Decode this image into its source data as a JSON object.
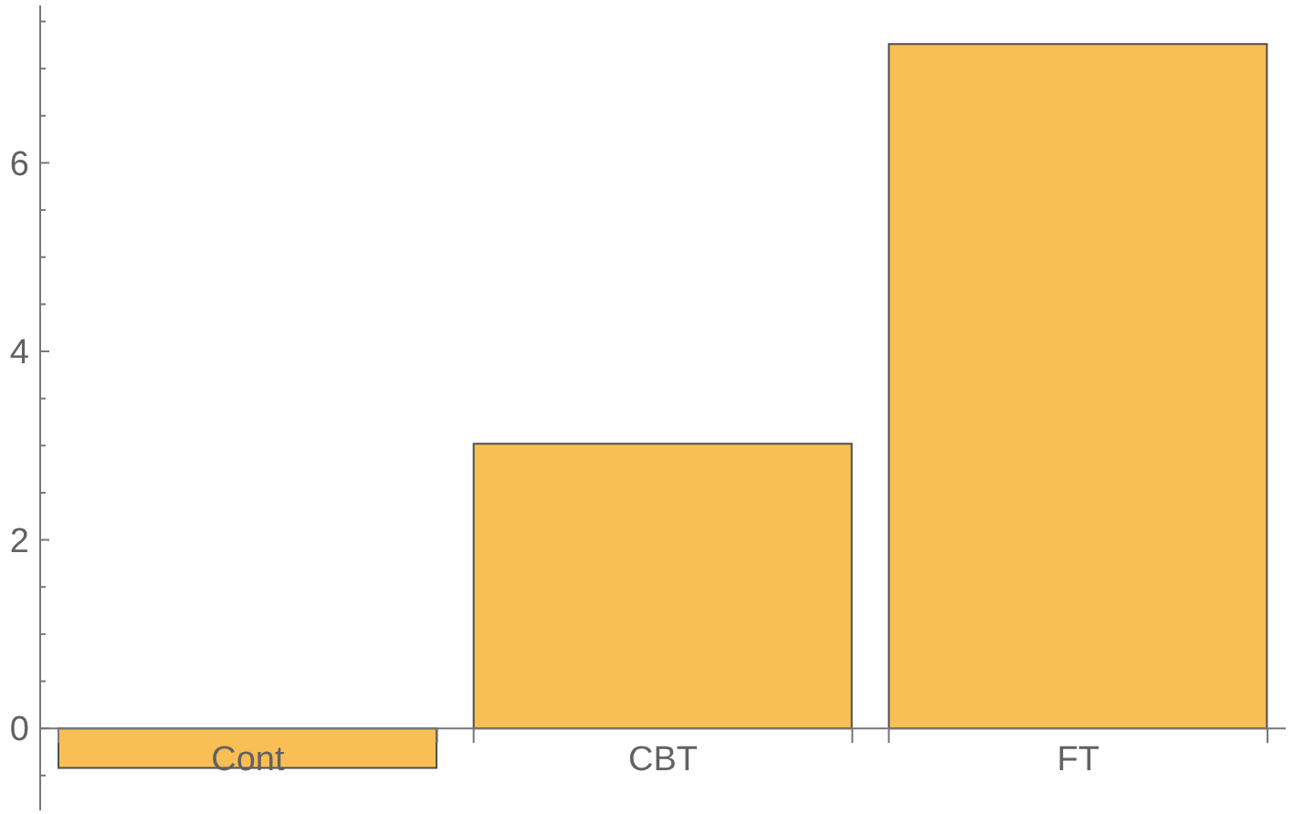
{
  "chart_data": {
    "type": "bar",
    "categories": [
      "Cont",
      "CBT",
      "FT"
    ],
    "values": [
      -0.42,
      3.02,
      7.26
    ],
    "color": "#f9be54",
    "ylim": [
      -0.87,
      7.67
    ],
    "yticks": [
      {
        "value": -0.5,
        "label": null
      },
      0,
      {
        "value": 0.5,
        "label": null
      },
      {
        "value": 1,
        "label": null
      },
      {
        "value": 1.5,
        "label": null
      },
      2,
      {
        "value": 2.5,
        "label": null
      },
      {
        "value": 3,
        "label": null
      },
      {
        "value": 3.5,
        "label": null
      },
      4,
      {
        "value": 4.5,
        "label": null
      },
      {
        "value": 5,
        "label": null
      },
      {
        "value": 5.5,
        "label": null
      },
      6,
      {
        "value": 6.5,
        "label": null
      },
      {
        "value": 7,
        "label": null
      },
      {
        "value": 7.5,
        "label": null
      }
    ]
  }
}
